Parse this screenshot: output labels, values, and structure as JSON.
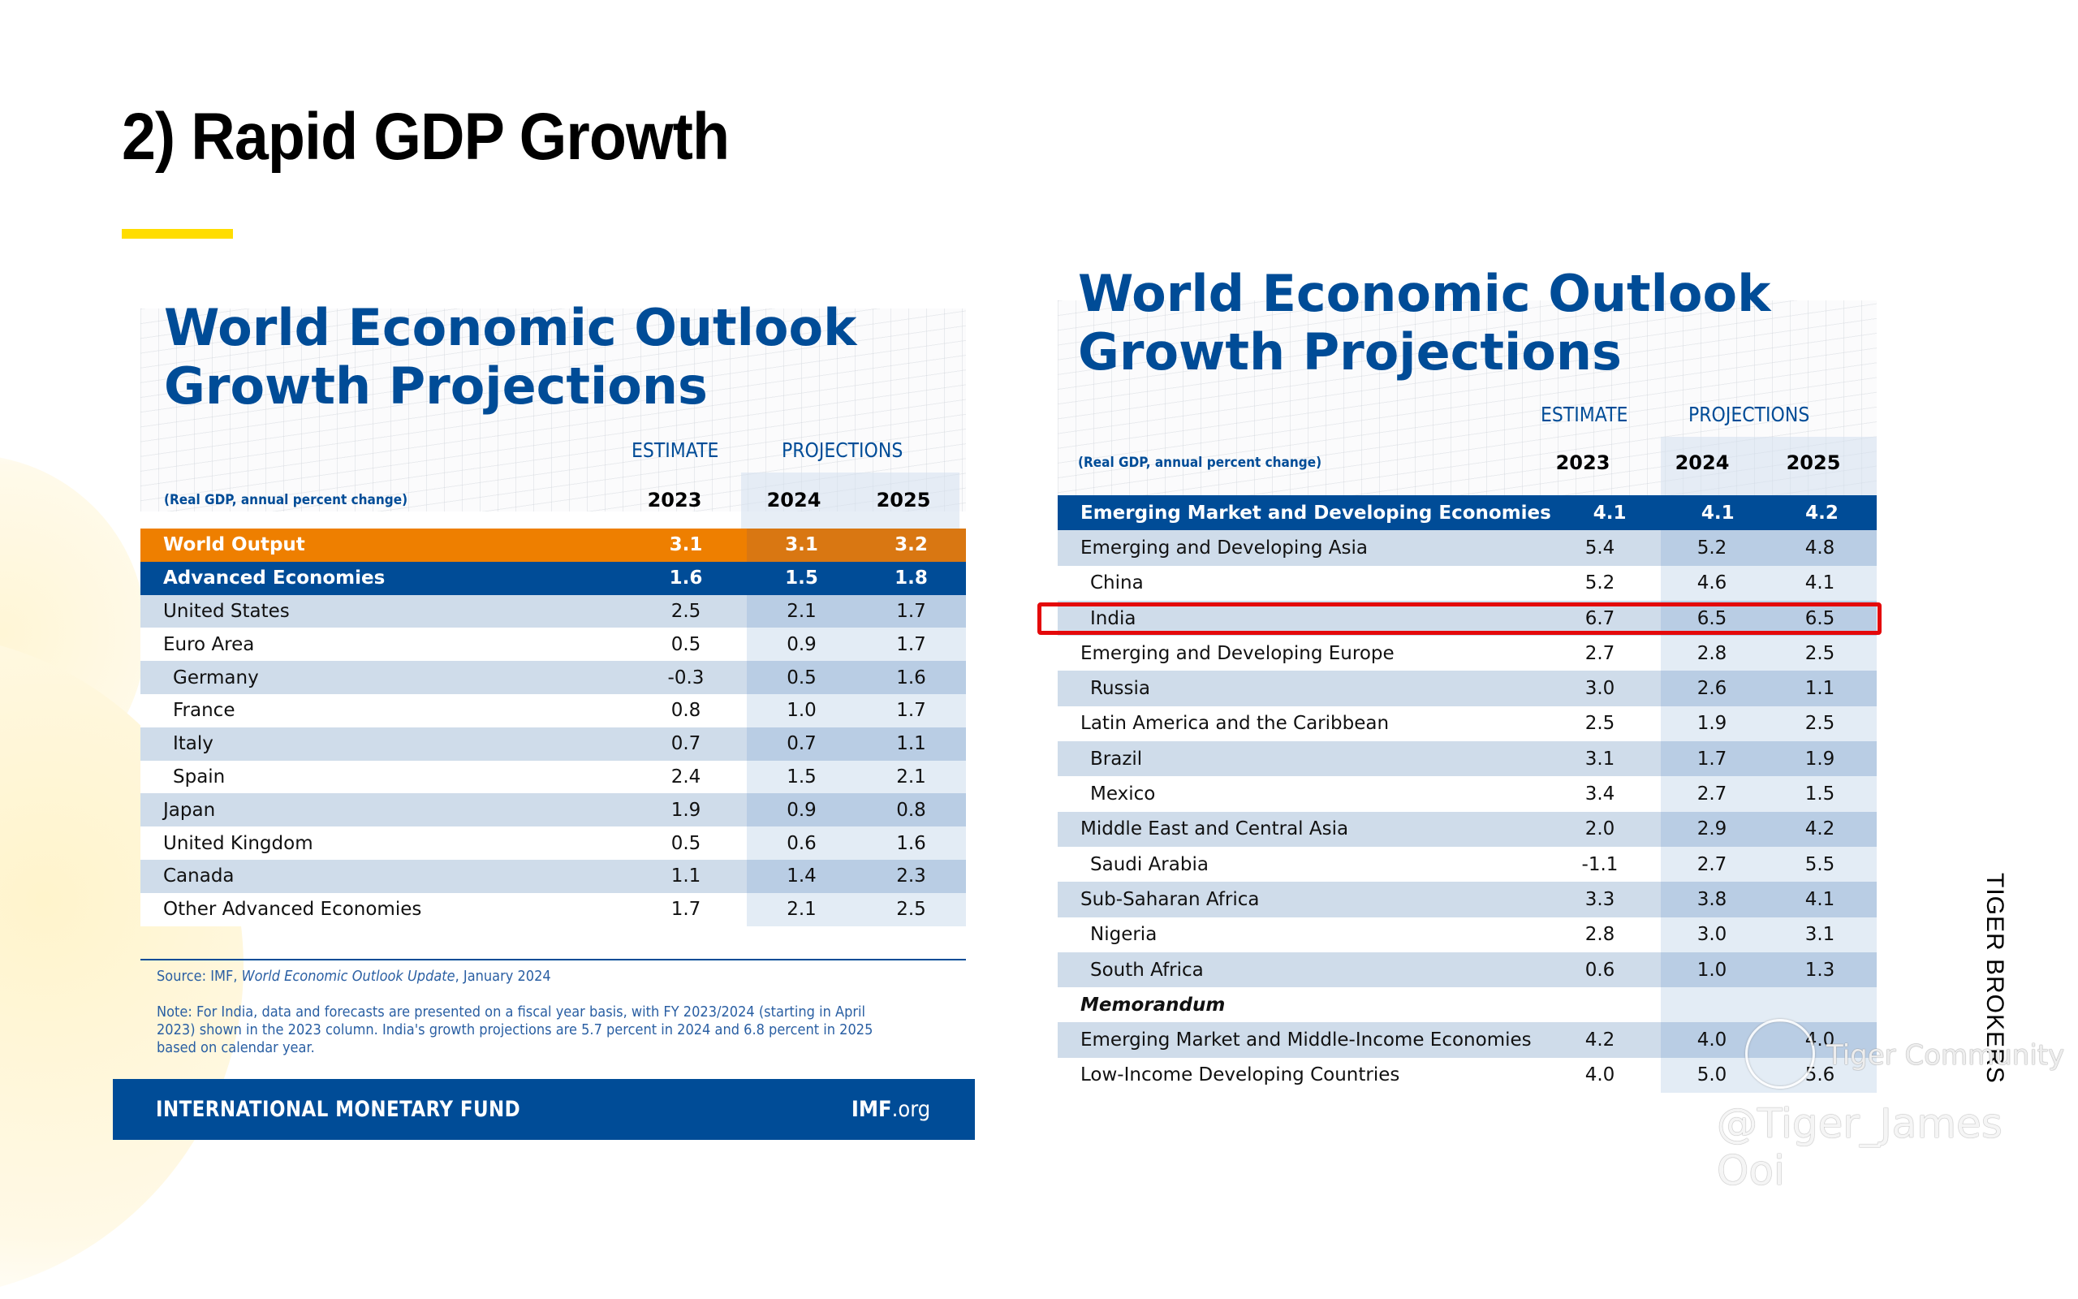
{
  "slide": {
    "title": "2) Rapid GDP Growth",
    "accent_color": "#ffdd00"
  },
  "colors": {
    "imf_blue": "#004c97",
    "world_output_orange": "#ee7f00",
    "highlight_red": "#e4080a",
    "stripe": "#cfdcea"
  },
  "left_table": {
    "title_line1": "World Economic Outlook",
    "title_line2": "Growth Projections",
    "estimate_label": "ESTIMATE",
    "projections_label": "PROJECTIONS",
    "unit_label": "(Real GDP, annual percent change)",
    "years": [
      "2023",
      "2024",
      "2025"
    ],
    "rows": [
      {
        "label": "World Output",
        "values": [
          "3.1",
          "3.1",
          "3.2"
        ],
        "style": "orange",
        "indent": false,
        "bold": true
      },
      {
        "label": "Advanced Economies",
        "values": [
          "1.6",
          "1.5",
          "1.8"
        ],
        "style": "blue",
        "indent": false,
        "bold": true
      },
      {
        "label": "United States",
        "values": [
          "2.5",
          "2.1",
          "1.7"
        ],
        "style": "stripe",
        "indent": false,
        "bold": false
      },
      {
        "label": "Euro Area",
        "values": [
          "0.5",
          "0.9",
          "1.7"
        ],
        "style": "plain",
        "indent": false,
        "bold": false
      },
      {
        "label": "Germany",
        "values": [
          "-0.3",
          "0.5",
          "1.6"
        ],
        "style": "stripe",
        "indent": true,
        "bold": false
      },
      {
        "label": "France",
        "values": [
          "0.8",
          "1.0",
          "1.7"
        ],
        "style": "plain",
        "indent": true,
        "bold": false
      },
      {
        "label": "Italy",
        "values": [
          "0.7",
          "0.7",
          "1.1"
        ],
        "style": "stripe",
        "indent": true,
        "bold": false
      },
      {
        "label": "Spain",
        "values": [
          "2.4",
          "1.5",
          "2.1"
        ],
        "style": "plain",
        "indent": true,
        "bold": false
      },
      {
        "label": "Japan",
        "values": [
          "1.9",
          "0.9",
          "0.8"
        ],
        "style": "stripe",
        "indent": false,
        "bold": false
      },
      {
        "label": "United Kingdom",
        "values": [
          "0.5",
          "0.6",
          "1.6"
        ],
        "style": "plain",
        "indent": false,
        "bold": false
      },
      {
        "label": "Canada",
        "values": [
          "1.1",
          "1.4",
          "2.3"
        ],
        "style": "stripe",
        "indent": false,
        "bold": false
      },
      {
        "label": "Other Advanced Economies",
        "values": [
          "1.7",
          "2.1",
          "2.5"
        ],
        "style": "plain",
        "indent": false,
        "bold": false
      }
    ],
    "source_prefix": "Source: IMF, ",
    "source_title": "World Economic Outlook Update",
    "source_suffix": ", January 2024",
    "note": "Note: For India, data and forecasts are presented on a fiscal year basis, with FY 2023/2024 (starting in April 2023) shown in the 2023 column. India's growth projections are 5.7 percent in 2024 and 6.8 percent in 2025 based on calendar year.",
    "footer_name": "INTERNATIONAL MONETARY FUND",
    "footer_url_bold": "IMF",
    "footer_url_rest": ".org"
  },
  "right_table": {
    "title_line1": "World Economic Outlook",
    "title_line2": "Growth Projections",
    "estimate_label": "ESTIMATE",
    "projections_label": "PROJECTIONS",
    "unit_label": "(Real GDP, annual percent change)",
    "years": [
      "2023",
      "2024",
      "2025"
    ],
    "rows": [
      {
        "label": "Emerging Market and Developing Economies",
        "values": [
          "4.1",
          "4.1",
          "4.2"
        ],
        "style": "blue",
        "indent": false,
        "bold": true
      },
      {
        "label": "Emerging and Developing Asia",
        "values": [
          "5.4",
          "5.2",
          "4.8"
        ],
        "style": "stripe",
        "indent": false,
        "bold": false
      },
      {
        "label": "China",
        "values": [
          "5.2",
          "4.6",
          "4.1"
        ],
        "style": "plain",
        "indent": true,
        "bold": false
      },
      {
        "label": "India",
        "values": [
          "6.7",
          "6.5",
          "6.5"
        ],
        "style": "stripe",
        "indent": true,
        "bold": false,
        "highlighted": true
      },
      {
        "label": "Emerging and Developing Europe",
        "values": [
          "2.7",
          "2.8",
          "2.5"
        ],
        "style": "plain",
        "indent": false,
        "bold": false
      },
      {
        "label": "Russia",
        "values": [
          "3.0",
          "2.6",
          "1.1"
        ],
        "style": "stripe",
        "indent": true,
        "bold": false
      },
      {
        "label": "Latin America and the Caribbean",
        "values": [
          "2.5",
          "1.9",
          "2.5"
        ],
        "style": "plain",
        "indent": false,
        "bold": false
      },
      {
        "label": "Brazil",
        "values": [
          "3.1",
          "1.7",
          "1.9"
        ],
        "style": "stripe",
        "indent": true,
        "bold": false
      },
      {
        "label": "Mexico",
        "values": [
          "3.4",
          "2.7",
          "1.5"
        ],
        "style": "plain",
        "indent": true,
        "bold": false
      },
      {
        "label": "Middle East and Central Asia",
        "values": [
          "2.0",
          "2.9",
          "4.2"
        ],
        "style": "stripe",
        "indent": false,
        "bold": false
      },
      {
        "label": "Saudi Arabia",
        "values": [
          "-1.1",
          "2.7",
          "5.5"
        ],
        "style": "plain",
        "indent": true,
        "bold": false
      },
      {
        "label": "Sub-Saharan Africa",
        "values": [
          "3.3",
          "3.8",
          "4.1"
        ],
        "style": "stripe",
        "indent": false,
        "bold": false
      },
      {
        "label": "Nigeria",
        "values": [
          "2.8",
          "3.0",
          "3.1"
        ],
        "style": "plain",
        "indent": true,
        "bold": false
      },
      {
        "label": "South Africa",
        "values": [
          "0.6",
          "1.0",
          "1.3"
        ],
        "style": "stripe",
        "indent": true,
        "bold": false
      },
      {
        "label": "Memorandum",
        "values": [
          "",
          "",
          ""
        ],
        "style": "memo",
        "indent": false,
        "bold": true
      },
      {
        "label": "Emerging Market and Middle-Income Economies",
        "values": [
          "4.2",
          "4.0",
          "4.0"
        ],
        "style": "stripe",
        "indent": false,
        "bold": false
      },
      {
        "label": "Low-Income Developing Countries",
        "values": [
          "4.0",
          "5.0",
          "5.6"
        ],
        "style": "plain",
        "indent": false,
        "bold": false
      }
    ]
  },
  "branding": {
    "vertical_text": "TIGER BROKERS",
    "watermark_community": "Tiger Community",
    "watermark_handle": "@Tiger_James Ooi",
    "logo_icon": "tiger-community-logo-icon"
  }
}
